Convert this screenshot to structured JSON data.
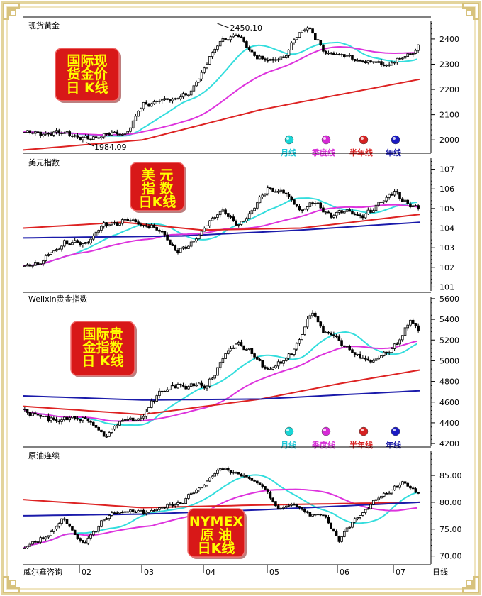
{
  "colors": {
    "frame": "#d9c890",
    "up": "#000000",
    "down": "#000000",
    "month": "#33dddd",
    "quarter": "#dd33dd",
    "halfyear": "#dd2222",
    "year": "#1a1aaa",
    "badge_red": "#d81818",
    "badge_text": "#ffff00"
  },
  "legend": [
    {
      "label": "月线",
      "color": "#20c8d8",
      "dot": "#19d6d6"
    },
    {
      "label": "季度线",
      "color": "#d830d8",
      "dot": "#d62ad6"
    },
    {
      "label": "半年线",
      "color": "#d82020",
      "dot": "#d62222"
    },
    {
      "label": "年线",
      "color": "#1a1aa8",
      "dot": "#1a1ac4"
    }
  ],
  "x_labels": [
    "威尔鑫咨询",
    "02",
    "03",
    "04",
    "05",
    "06",
    "07",
    "日线"
  ],
  "chart_data": [
    {
      "type": "candlestick",
      "title": "现货黄金",
      "badge": [
        "国际现",
        "货金价",
        "日 K线"
      ],
      "ylim": [
        1950,
        2470
      ],
      "yticks": [
        2000,
        2100,
        2200,
        2300,
        2400
      ],
      "annotations": [
        {
          "text": "2450.10",
          "x_frac": 0.5,
          "value": 2450.1
        },
        {
          "text": "1984.09",
          "x_frac": 0.17,
          "value": 1984.09
        }
      ],
      "anchors": [
        [
          0,
          2030
        ],
        [
          0.06,
          2025
        ],
        [
          0.11,
          2030
        ],
        [
          0.15,
          2000
        ],
        [
          0.2,
          2020
        ],
        [
          0.26,
          2030
        ],
        [
          0.3,
          2140
        ],
        [
          0.36,
          2160
        ],
        [
          0.42,
          2180
        ],
        [
          0.47,
          2330
        ],
        [
          0.5,
          2390
        ],
        [
          0.54,
          2420
        ],
        [
          0.58,
          2340
        ],
        [
          0.62,
          2310
        ],
        [
          0.66,
          2330
        ],
        [
          0.7,
          2430
        ],
        [
          0.72,
          2450
        ],
        [
          0.76,
          2350
        ],
        [
          0.8,
          2340
        ],
        [
          0.84,
          2320
        ],
        [
          0.88,
          2310
        ],
        [
          0.92,
          2300
        ],
        [
          0.96,
          2320
        ],
        [
          1,
          2370
        ]
      ],
      "ma": [
        {
          "kind": "month",
          "lag": 20
        },
        {
          "kind": "quarter",
          "lag": 50
        },
        {
          "kind": "halfyear",
          "line": [
            [
              0,
              1960
            ],
            [
              0.3,
              2000
            ],
            [
              0.6,
              2120
            ],
            [
              1,
              2240
            ]
          ]
        }
      ],
      "show_legend": true
    },
    {
      "type": "candlestick",
      "title": "美元指数",
      "badge": [
        "美  元",
        "指  数",
        "日K线"
      ],
      "ylim": [
        100.8,
        107.6
      ],
      "yticks": [
        101,
        102,
        103,
        104,
        105,
        106,
        107
      ],
      "anchors": [
        [
          0,
          102.0
        ],
        [
          0.05,
          102.4
        ],
        [
          0.1,
          103.3
        ],
        [
          0.15,
          103.2
        ],
        [
          0.2,
          104.1
        ],
        [
          0.25,
          104.4
        ],
        [
          0.3,
          104.2
        ],
        [
          0.35,
          103.8
        ],
        [
          0.39,
          102.7
        ],
        [
          0.42,
          103.2
        ],
        [
          0.46,
          104.0
        ],
        [
          0.5,
          105.0
        ],
        [
          0.54,
          104.1
        ],
        [
          0.58,
          105.0
        ],
        [
          0.62,
          106.1
        ],
        [
          0.66,
          105.8
        ],
        [
          0.7,
          104.9
        ],
        [
          0.74,
          105.3
        ],
        [
          0.78,
          104.6
        ],
        [
          0.82,
          104.9
        ],
        [
          0.86,
          104.5
        ],
        [
          0.9,
          105.3
        ],
        [
          0.94,
          105.8
        ],
        [
          0.98,
          105.2
        ],
        [
          1,
          104.9
        ]
      ],
      "ma": [
        {
          "kind": "month",
          "lag": 20
        },
        {
          "kind": "quarter",
          "lag": 50
        },
        {
          "kind": "halfyear",
          "line": [
            [
              0,
              104.0
            ],
            [
              0.25,
              104.3
            ],
            [
              0.45,
              103.9
            ],
            [
              0.7,
              104.0
            ],
            [
              1,
              104.7
            ]
          ]
        },
        {
          "kind": "year",
          "line": [
            [
              0,
              103.5
            ],
            [
              0.4,
              103.6
            ],
            [
              0.7,
              103.9
            ],
            [
              1,
              104.3
            ]
          ]
        }
      ],
      "show_legend": false
    },
    {
      "type": "candlestick",
      "title": "Wellxin贵金指数",
      "badge": [
        "国际贵",
        "金指数",
        "日 K线"
      ],
      "ylim": [
        4180,
        5620
      ],
      "yticks": [
        4200,
        4400,
        4600,
        4800,
        5000,
        5200,
        5400,
        5600
      ],
      "anchors": [
        [
          0,
          4520
        ],
        [
          0.05,
          4450
        ],
        [
          0.1,
          4430
        ],
        [
          0.15,
          4450
        ],
        [
          0.2,
          4280
        ],
        [
          0.26,
          4440
        ],
        [
          0.3,
          4440
        ],
        [
          0.34,
          4700
        ],
        [
          0.4,
          4770
        ],
        [
          0.46,
          4750
        ],
        [
          0.5,
          5000
        ],
        [
          0.54,
          5200
        ],
        [
          0.58,
          5050
        ],
        [
          0.62,
          4900
        ],
        [
          0.66,
          5000
        ],
        [
          0.7,
          5200
        ],
        [
          0.73,
          5500
        ],
        [
          0.76,
          5280
        ],
        [
          0.8,
          5200
        ],
        [
          0.84,
          5050
        ],
        [
          0.88,
          5000
        ],
        [
          0.92,
          5060
        ],
        [
          0.96,
          5250
        ],
        [
          0.98,
          5380
        ],
        [
          1,
          5300
        ]
      ],
      "ma": [
        {
          "kind": "month",
          "lag": 20
        },
        {
          "kind": "quarter",
          "lag": 50
        },
        {
          "kind": "halfyear",
          "line": [
            [
              0,
              4560
            ],
            [
              0.3,
              4480
            ],
            [
              0.6,
              4630
            ],
            [
              0.8,
              4780
            ],
            [
              1,
              4910
            ]
          ]
        },
        {
          "kind": "year",
          "line": [
            [
              0,
              4660
            ],
            [
              0.3,
              4620
            ],
            [
              0.6,
              4630
            ],
            [
              1,
              4710
            ]
          ]
        }
      ],
      "show_legend": true
    },
    {
      "type": "candlestick",
      "title": "原油连续",
      "badge": [
        "NYMEX",
        "原  油",
        "日K线"
      ],
      "ylim": [
        68.5,
        89.5
      ],
      "yticks": [
        70.0,
        75.0,
        80.0,
        85.0
      ],
      "anchors": [
        [
          0,
          71.5
        ],
        [
          0.06,
          74
        ],
        [
          0.1,
          77
        ],
        [
          0.15,
          72
        ],
        [
          0.2,
          77
        ],
        [
          0.25,
          78.5
        ],
        [
          0.3,
          78
        ],
        [
          0.35,
          79
        ],
        [
          0.4,
          80
        ],
        [
          0.45,
          83
        ],
        [
          0.5,
          86.5
        ],
        [
          0.55,
          85
        ],
        [
          0.6,
          83.5
        ],
        [
          0.64,
          79
        ],
        [
          0.68,
          79.5
        ],
        [
          0.72,
          78
        ],
        [
          0.76,
          77.5
        ],
        [
          0.8,
          73
        ],
        [
          0.84,
          77
        ],
        [
          0.88,
          79.5
        ],
        [
          0.92,
          82
        ],
        [
          0.96,
          83.5
        ],
        [
          1,
          82
        ]
      ],
      "ma": [
        {
          "kind": "month",
          "lag": 20
        },
        {
          "kind": "quarter",
          "lag": 50
        },
        {
          "kind": "halfyear",
          "line": [
            [
              0,
              80.5
            ],
            [
              0.3,
              79
            ],
            [
              0.6,
              79.5
            ],
            [
              1,
              80
            ]
          ]
        },
        {
          "kind": "year",
          "line": [
            [
              0,
              77.5
            ],
            [
              0.3,
              77.8
            ],
            [
              0.6,
              78.6
            ],
            [
              1,
              80
            ]
          ]
        }
      ],
      "show_legend": false
    }
  ]
}
